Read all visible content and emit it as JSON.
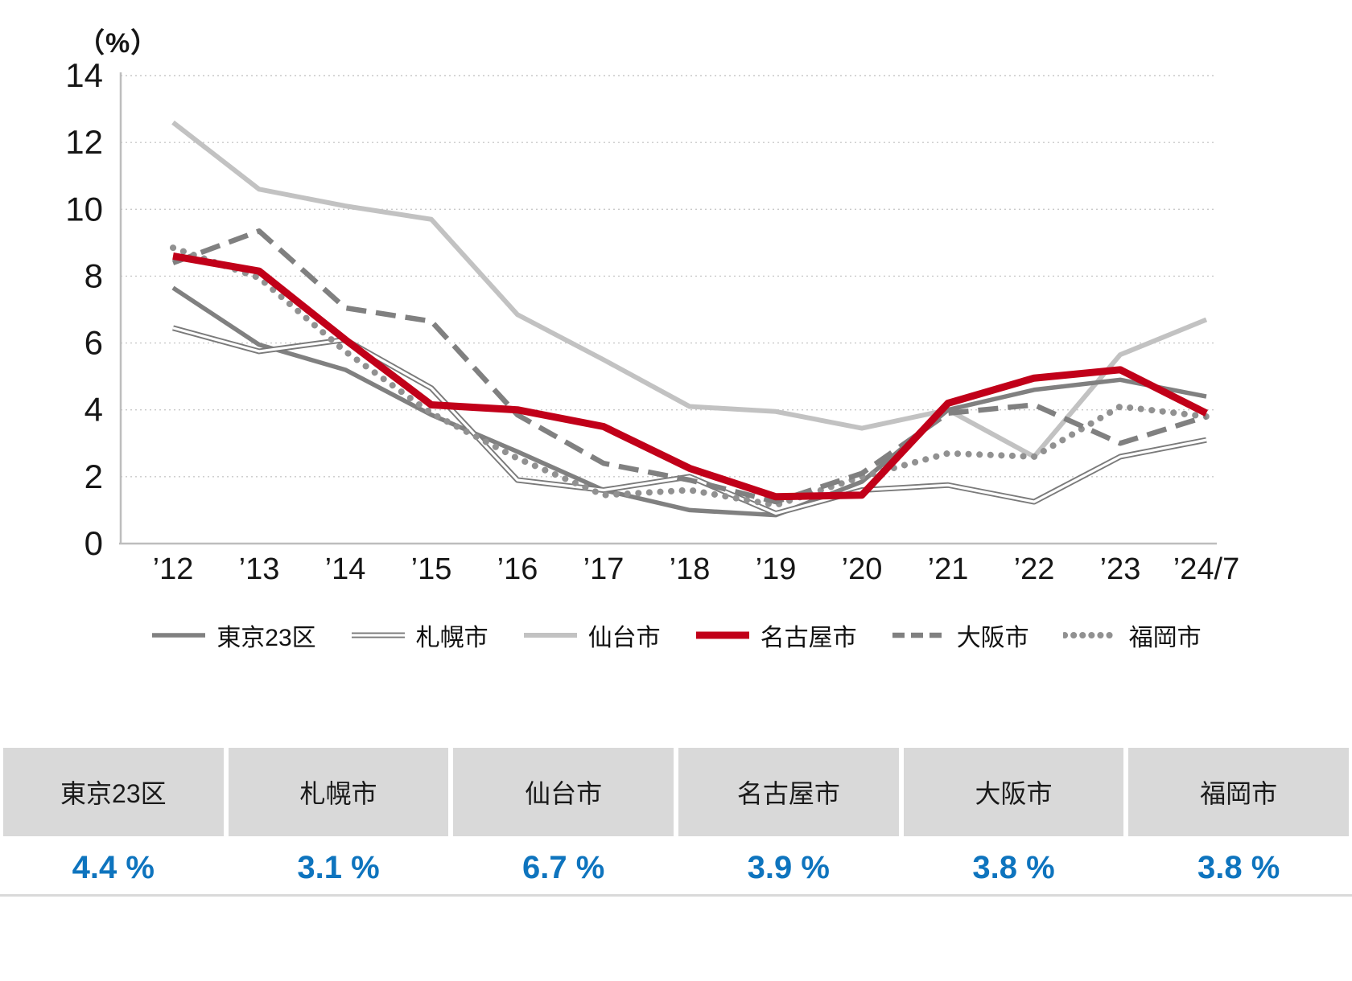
{
  "chart_data": {
    "type": "line",
    "title": "",
    "unit_label": "（%）",
    "xlabel": "",
    "ylabel": "%",
    "ylim": [
      0,
      14
    ],
    "ytick_step": 2,
    "grid": "horizontal-dotted",
    "legend_position": "bottom",
    "x_labels": [
      "’12",
      "’13",
      "’14",
      "’15",
      "’16",
      "’17",
      "’18",
      "’19",
      "’20",
      "’21",
      "’22",
      "’23",
      "’24/7"
    ],
    "series": [
      {
        "id": "tokyo23",
        "name": "東京23区",
        "style": "solid-medium",
        "color": "#808080",
        "values": [
          7.65,
          5.95,
          5.2,
          3.85,
          2.75,
          1.6,
          1.0,
          0.85,
          1.85,
          4.0,
          4.6,
          4.9,
          4.4
        ]
      },
      {
        "id": "sapporo",
        "name": "札幌市",
        "style": "double",
        "color": "#7a7a7a",
        "values": [
          6.45,
          5.75,
          6.1,
          4.65,
          1.9,
          1.6,
          2.0,
          0.9,
          1.6,
          1.75,
          1.25,
          2.6,
          3.1
        ]
      },
      {
        "id": "sendai",
        "name": "仙台市",
        "style": "solid-light",
        "color": "#c2c2c2",
        "values": [
          12.6,
          10.6,
          10.1,
          9.7,
          6.85,
          5.5,
          4.1,
          3.95,
          3.45,
          4.0,
          2.6,
          5.65,
          6.7
        ]
      },
      {
        "id": "nagoya",
        "name": "名古屋市",
        "style": "solid-heavy",
        "color": "#c10019",
        "values": [
          8.6,
          8.15,
          6.1,
          4.15,
          4.0,
          3.5,
          2.25,
          1.4,
          1.45,
          4.2,
          4.95,
          5.2,
          3.9
        ]
      },
      {
        "id": "osaka",
        "name": "大阪市",
        "style": "dashed",
        "color": "#808080",
        "values": [
          8.4,
          9.35,
          7.05,
          6.65,
          3.85,
          2.4,
          1.9,
          1.25,
          2.1,
          3.9,
          4.15,
          3.0,
          3.8
        ]
      },
      {
        "id": "fukuoka",
        "name": "福岡市",
        "style": "dotted",
        "color": "#919191",
        "values": [
          8.85,
          7.95,
          5.75,
          3.9,
          2.55,
          1.45,
          1.6,
          1.15,
          2.0,
          2.7,
          2.6,
          4.1,
          3.8
        ]
      }
    ]
  },
  "summary_table": {
    "header_bg": "#d9d9d9",
    "value_color": "#0e74be",
    "columns": [
      {
        "label": "東京23区",
        "value": "4.4 %"
      },
      {
        "label": "札幌市",
        "value": "3.1 %"
      },
      {
        "label": "仙台市",
        "value": "6.7 %"
      },
      {
        "label": "名古屋市",
        "value": "3.9 %"
      },
      {
        "label": "大阪市",
        "value": "3.8 %"
      },
      {
        "label": "福岡市",
        "value": "3.8 %"
      }
    ]
  }
}
